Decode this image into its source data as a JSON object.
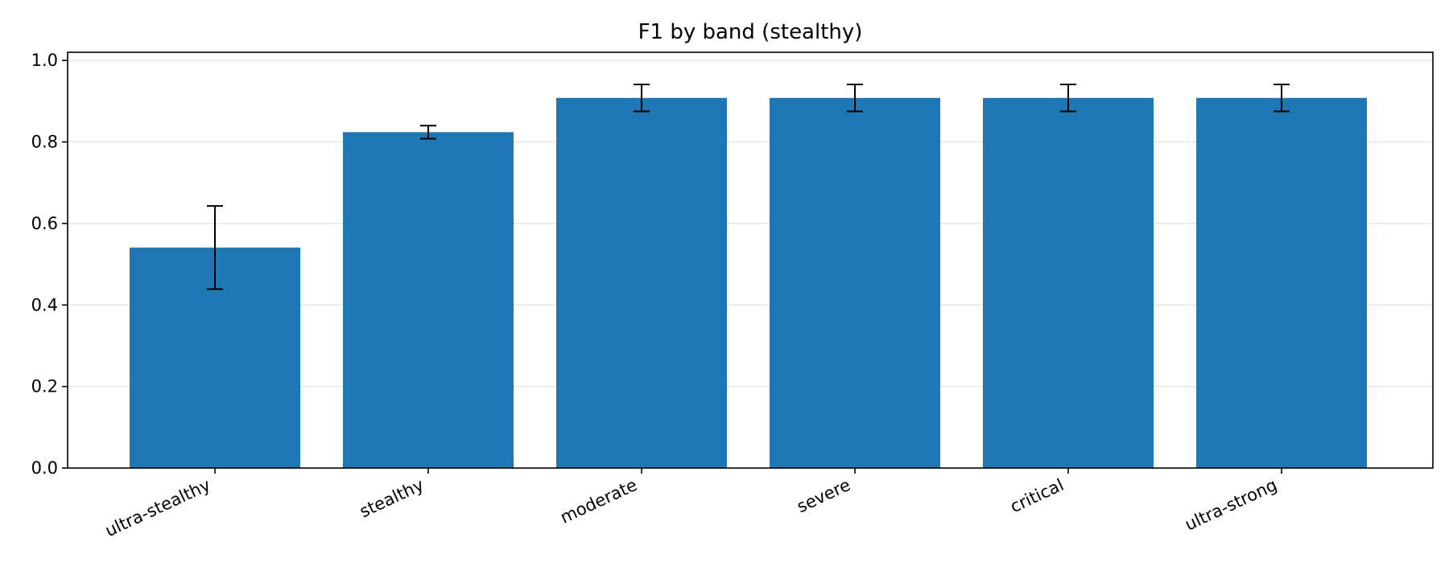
{
  "chart_data": {
    "type": "bar",
    "title": "F1 by band (stealthy)",
    "xlabel": "",
    "ylabel": "",
    "categories": [
      "ultra-stealthy",
      "stealthy",
      "moderate",
      "severe",
      "critical",
      "ultra-strong"
    ],
    "values": [
      0.541,
      0.824,
      0.908,
      0.908,
      0.908,
      0.908
    ],
    "errors": [
      0.102,
      0.016,
      0.033,
      0.033,
      0.033,
      0.033
    ],
    "ylim": [
      0,
      1.02
    ],
    "yticks": [
      0.0,
      0.2,
      0.4,
      0.6,
      0.8,
      1.0
    ],
    "ytick_labels": [
      "0.0",
      "0.2",
      "0.4",
      "0.6",
      "0.8",
      "1.0"
    ],
    "bar_color": "#1f77b4",
    "grid": "horizontal",
    "legend": "none"
  }
}
